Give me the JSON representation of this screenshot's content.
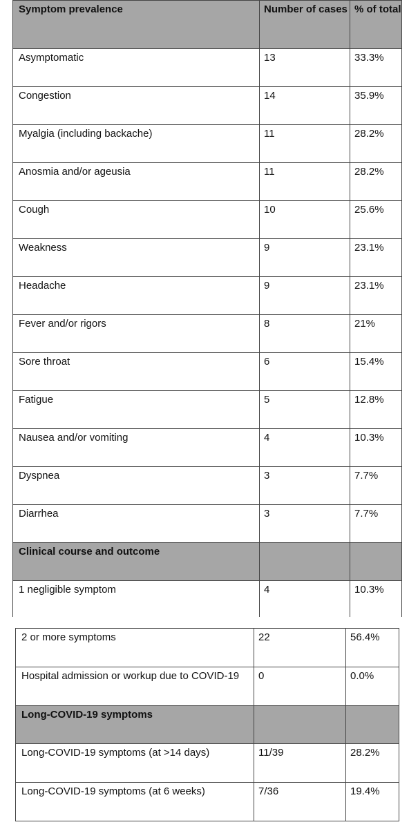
{
  "table1": {
    "headers": [
      "Symptom prevalence",
      "Number of cases",
      "% of total"
    ],
    "rows": [
      [
        "Asymptomatic",
        "13",
        "33.3%"
      ],
      [
        "Congestion",
        "14",
        "35.9%"
      ],
      [
        "Myalgia (including backache)",
        "11",
        "28.2%"
      ],
      [
        "Anosmia and/or ageusia",
        "11",
        "28.2%"
      ],
      [
        "Cough",
        "10",
        "25.6%"
      ],
      [
        "Weakness",
        "9",
        "23.1%"
      ],
      [
        "Headache",
        "9",
        "23.1%"
      ],
      [
        "Fever and/or rigors",
        "8",
        "21%"
      ],
      [
        "Sore throat",
        "6",
        "15.4%"
      ],
      [
        "Fatigue",
        "5",
        "12.8%"
      ],
      [
        "Nausea and/or vomiting",
        "4",
        "10.3%"
      ],
      [
        "Dyspnea",
        "3",
        "7.7%"
      ],
      [
        "Diarrhea",
        "3",
        "7.7%"
      ]
    ],
    "section_clinical": "Clinical course and outcome",
    "clinical_rows": [
      [
        "1 negligible symptom",
        "4",
        "10.3%"
      ]
    ]
  },
  "table2": {
    "rows_clinical": [
      [
        "2 or more symptoms",
        "22",
        "56.4%"
      ],
      [
        "Hospital admission or workup due to COVID-19",
        "0",
        "0.0%"
      ]
    ],
    "section_long": "Long-COVID-19 symptoms",
    "rows_long": [
      [
        "Long-COVID-19 symptoms (at >14 days)",
        "11/39",
        "28.2%"
      ],
      [
        "Long-COVID-19 symptoms (at 6 weeks)",
        "7/36",
        "19.4%"
      ]
    ]
  }
}
